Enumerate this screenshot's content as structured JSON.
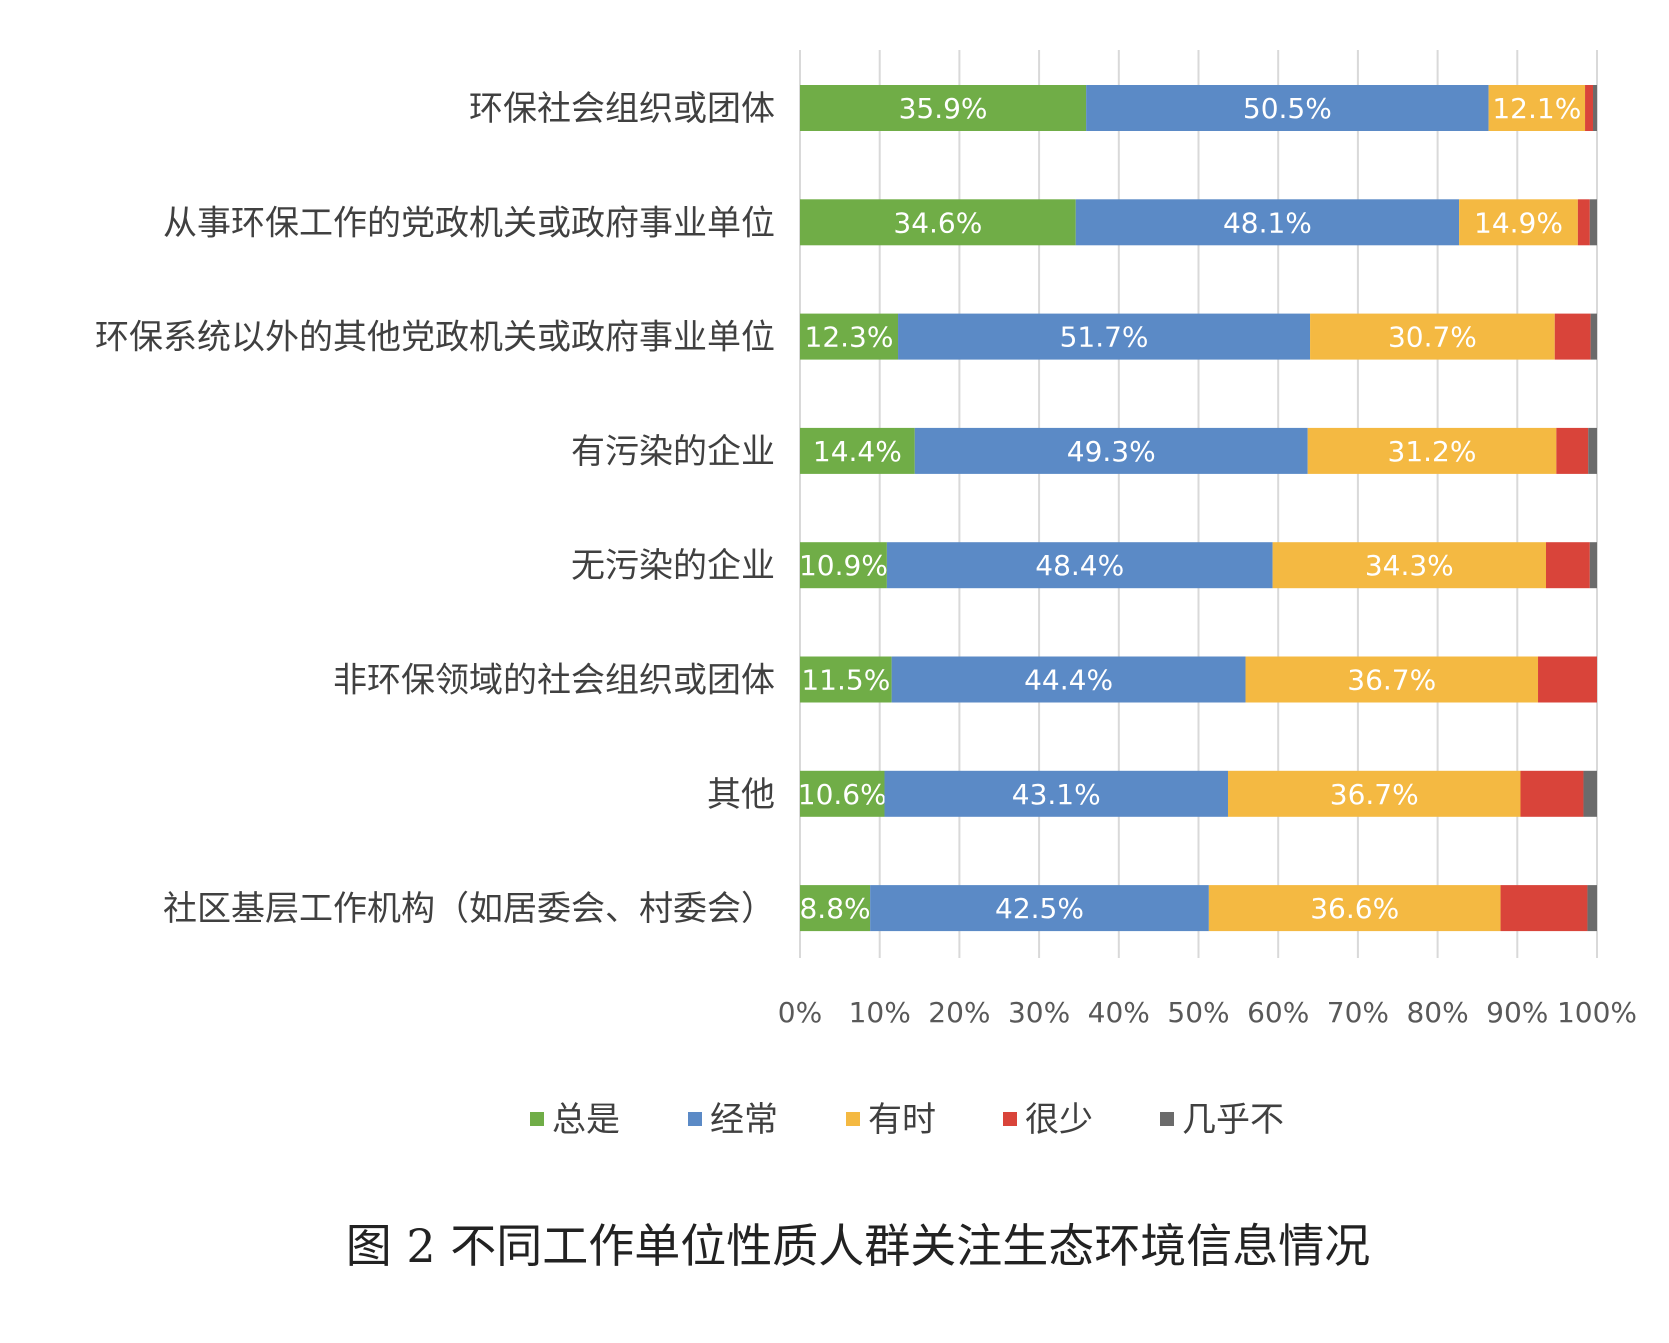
{
  "chart_data": {
    "type": "bar",
    "orientation": "horizontal",
    "stacked": true,
    "stack_mode": "percent",
    "categories": [
      "环保社会组织或团体",
      "从事环保工作的党政机关或政府事业单位",
      "环保系统以外的其他党政机关或政府事业单位",
      "有污染的企业",
      "无污染的企业",
      "非环保领域的社会组织或团体",
      "其他",
      "社区基层工作机构（如居委会、村委会）"
    ],
    "series": [
      {
        "name": "总是",
        "color": "#70ad47",
        "values": [
          35.9,
          34.6,
          12.3,
          14.4,
          10.9,
          11.5,
          10.6,
          8.8
        ],
        "labels": [
          "35.9%",
          "34.6%",
          "12.3%",
          "14.4%",
          "10.9%",
          "11.5%",
          "10.6%",
          "8.8%"
        ]
      },
      {
        "name": "经常",
        "color": "#5b8ac6",
        "values": [
          50.5,
          48.1,
          51.7,
          49.3,
          48.4,
          44.4,
          43.1,
          42.5
        ],
        "labels": [
          "50.5%",
          "48.1%",
          "51.7%",
          "49.3%",
          "48.4%",
          "44.4%",
          "43.1%",
          "42.5%"
        ]
      },
      {
        "name": "有时",
        "color": "#f4b942",
        "values": [
          12.1,
          14.9,
          30.7,
          31.2,
          34.3,
          36.7,
          36.7,
          36.6
        ],
        "labels": [
          "12.1%",
          "14.9%",
          "30.7%",
          "31.2%",
          "34.3%",
          "36.7%",
          "36.7%",
          "36.6%"
        ]
      },
      {
        "name": "很少",
        "color": "#d9443a",
        "values": [
          1.0,
          1.5,
          4.5,
          4.0,
          5.5,
          7.4,
          7.9,
          10.9
        ],
        "labels": []
      },
      {
        "name": "几乎不",
        "color": "#6b6b6b",
        "values": [
          0.5,
          0.9,
          0.8,
          1.1,
          0.9,
          0.0,
          1.7,
          1.2
        ],
        "labels": []
      }
    ],
    "xlim": [
      0,
      100
    ],
    "x_ticks": [
      "0%",
      "10%",
      "20%",
      "30%",
      "40%",
      "50%",
      "60%",
      "70%",
      "80%",
      "90%",
      "100%"
    ],
    "grid": true,
    "legend_position": "bottom",
    "caption": "图 2 不同工作单位性质人群关注生态环境信息情况"
  }
}
